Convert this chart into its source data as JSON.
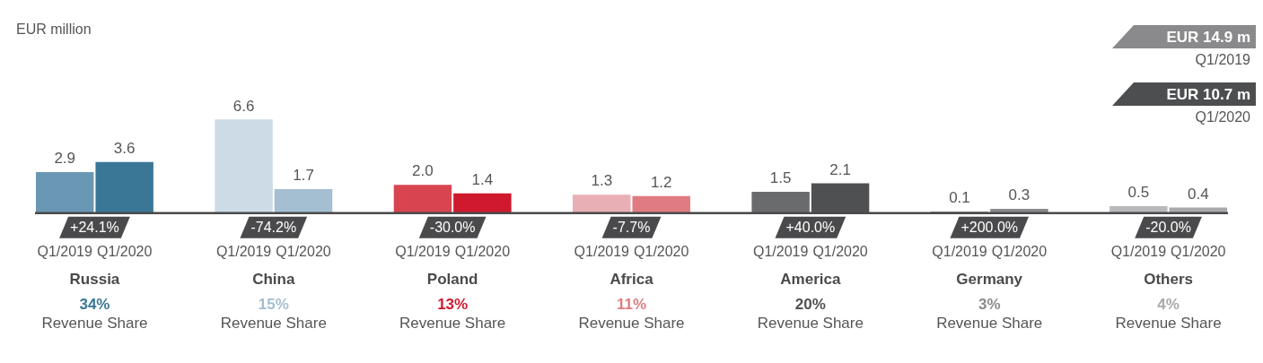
{
  "chart_data": {
    "type": "bar",
    "categories": [
      "Q1/2019",
      "Q1/2020",
      null,
      "Q1/2019",
      "Q1/2020",
      null,
      "Q1/2019",
      "Q1/2020",
      null,
      "Q1/2019",
      "Q1/2020",
      null,
      "Q1/2019",
      "Q1/2020",
      null,
      "Q1/2019",
      "Q1/2020",
      null,
      "Q1/2019",
      "Q1/2020"
    ],
    "values": [
      2.9,
      3.6,
      null,
      6.6,
      1.7,
      null,
      2.0,
      1.4,
      null,
      1.3,
      1.2,
      null,
      1.5,
      2.1,
      null,
      0.1,
      0.3,
      null,
      0.5,
      0.4
    ],
    "value_labels": [
      "2.9",
      "3.6",
      null,
      "6.6",
      "1.7",
      null,
      "2.0",
      "1.4",
      null,
      "1.3",
      "1.2",
      null,
      "1.5",
      "2.1",
      null,
      "0.1",
      "0.3",
      null,
      "0.5",
      "0.4"
    ],
    "colors": [
      "#6a98b4",
      "#3a7696",
      "#ffffff",
      "#cddbe7",
      "#a4bed2",
      "#ffffff",
      "#d8444f",
      "#d0182e",
      "#ffffff",
      "#e8afb4",
      "#e07b81",
      "#ffffff",
      "#6a6b6d",
      "#4f5052",
      "#ffffff",
      "#7a7a7c",
      "#8a8a8c",
      "#ffffff",
      "#b9b9bb",
      "#a9a9ab"
    ],
    "grid": false,
    "annotations": [
      "Russia",
      "China",
      "Poland",
      "Africa",
      "America",
      "Germany",
      "Others",
      "+24.1%",
      "-74.2%",
      "-30.0%",
      "-7.7%",
      "+40.0%",
      "+200.0%",
      "-20.0%",
      "34%",
      "15%",
      "13%",
      "11%",
      "20%",
      "3%",
      "4%",
      "Revenue Share",
      "Revenue Share",
      "Revenue Share",
      "Revenue Share",
      "Revenue Share",
      "Revenue Share",
      "Revenue Share",
      "EUR million",
      "EUR 14.9 m",
      "Q1/2019",
      "EUR 10.7 m",
      "Q1/2020"
    ]
  }
}
